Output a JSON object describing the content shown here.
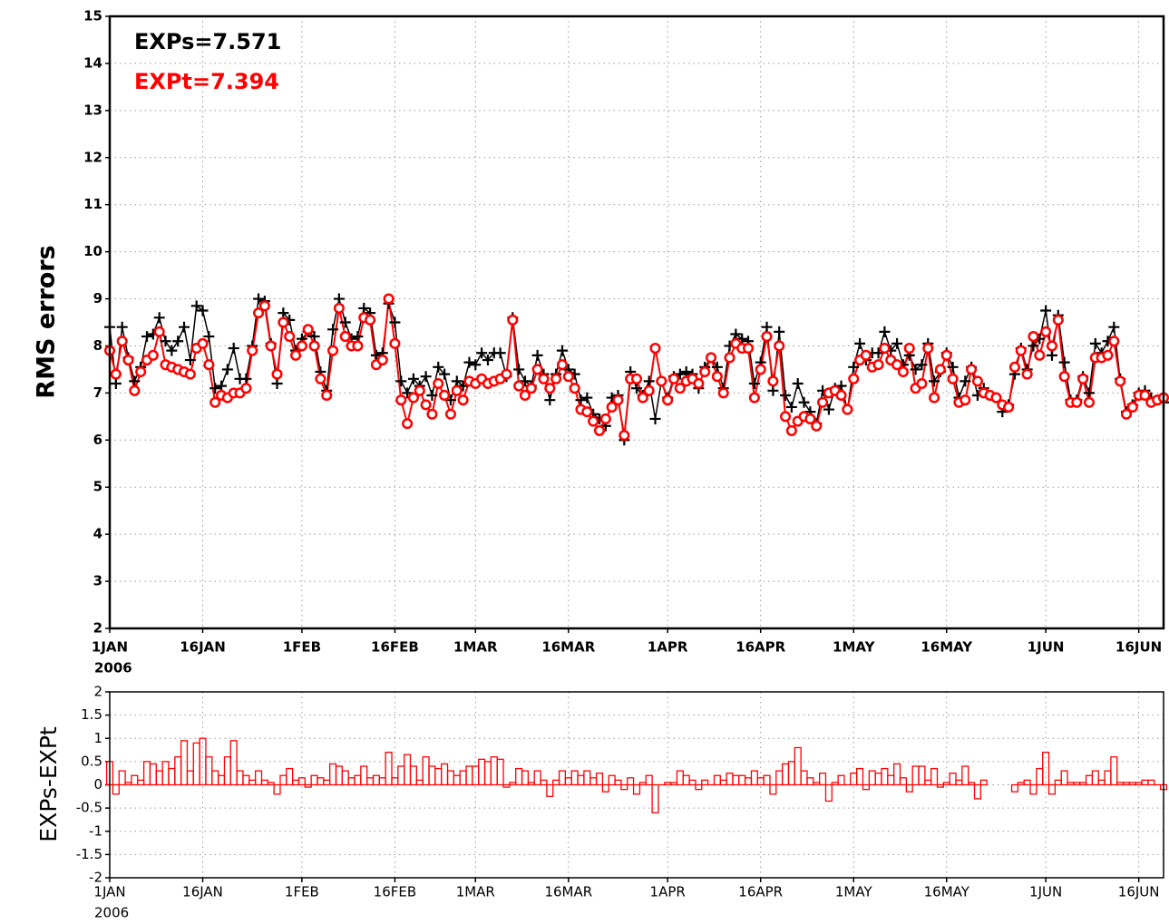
{
  "chart_data": [
    {
      "type": "line",
      "y_label": "RMS errors",
      "x_year_label": "2006",
      "grid": true,
      "x": [
        "2006-01-01",
        "2006-01-02",
        "2006-01-03",
        "2006-01-04",
        "2006-01-05",
        "2006-01-06",
        "2006-01-07",
        "2006-01-08",
        "2006-01-09",
        "2006-01-10",
        "2006-01-11",
        "2006-01-12",
        "2006-01-13",
        "2006-01-14",
        "2006-01-15",
        "2006-01-16",
        "2006-01-17",
        "2006-01-18",
        "2006-01-19",
        "2006-01-20",
        "2006-01-21",
        "2006-01-22",
        "2006-01-23",
        "2006-01-24",
        "2006-01-25",
        "2006-01-26",
        "2006-01-27",
        "2006-01-28",
        "2006-01-29",
        "2006-01-30",
        "2006-01-31",
        "2006-02-01",
        "2006-02-02",
        "2006-02-03",
        "2006-02-04",
        "2006-02-05",
        "2006-02-06",
        "2006-02-07",
        "2006-02-08",
        "2006-02-09",
        "2006-02-10",
        "2006-02-11",
        "2006-02-12",
        "2006-02-13",
        "2006-02-14",
        "2006-02-15",
        "2006-02-16",
        "2006-02-17",
        "2006-02-18",
        "2006-02-19",
        "2006-02-20",
        "2006-02-21",
        "2006-02-22",
        "2006-02-23",
        "2006-02-24",
        "2006-02-25",
        "2006-02-26",
        "2006-02-27",
        "2006-02-28",
        "2006-03-01",
        "2006-03-02",
        "2006-03-03",
        "2006-03-04",
        "2006-03-05",
        "2006-03-06",
        "2006-03-07",
        "2006-03-08",
        "2006-03-09",
        "2006-03-10",
        "2006-03-11",
        "2006-03-12",
        "2006-03-13",
        "2006-03-14",
        "2006-03-15",
        "2006-03-16",
        "2006-03-17",
        "2006-03-18",
        "2006-03-19",
        "2006-03-20",
        "2006-03-21",
        "2006-03-22",
        "2006-03-23",
        "2006-03-24",
        "2006-03-25",
        "2006-03-26",
        "2006-03-27",
        "2006-03-28",
        "2006-03-29",
        "2006-03-30",
        "2006-03-31",
        "2006-04-01",
        "2006-04-02",
        "2006-04-03",
        "2006-04-04",
        "2006-04-05",
        "2006-04-06",
        "2006-04-07",
        "2006-04-08",
        "2006-04-09",
        "2006-04-10",
        "2006-04-11",
        "2006-04-12",
        "2006-04-13",
        "2006-04-14",
        "2006-04-15",
        "2006-04-16",
        "2006-04-17",
        "2006-04-18",
        "2006-04-19",
        "2006-04-20",
        "2006-04-21",
        "2006-04-22",
        "2006-04-23",
        "2006-04-24",
        "2006-04-25",
        "2006-04-26",
        "2006-04-27",
        "2006-04-28",
        "2006-04-29",
        "2006-04-30",
        "2006-05-01",
        "2006-05-02",
        "2006-05-03",
        "2006-05-04",
        "2006-05-05",
        "2006-05-06",
        "2006-05-07",
        "2006-05-08",
        "2006-05-09",
        "2006-05-10",
        "2006-05-11",
        "2006-05-12",
        "2006-05-13",
        "2006-05-14",
        "2006-05-15",
        "2006-05-16",
        "2006-05-17",
        "2006-05-18",
        "2006-05-19",
        "2006-05-20",
        "2006-05-21",
        "2006-05-22",
        "2006-05-23",
        "2006-05-24",
        "2006-05-25",
        "2006-05-26",
        "2006-05-27",
        "2006-05-28",
        "2006-05-29",
        "2006-05-30",
        "2006-05-31",
        "2006-06-01",
        "2006-06-02",
        "2006-06-03",
        "2006-06-04",
        "2006-06-05",
        "2006-06-06",
        "2006-06-07",
        "2006-06-08",
        "2006-06-09",
        "2006-06-10",
        "2006-06-11",
        "2006-06-12",
        "2006-06-13",
        "2006-06-14",
        "2006-06-15",
        "2006-06-16",
        "2006-06-17",
        "2006-06-18",
        "2006-06-19",
        "2006-06-20"
      ],
      "series": [
        {
          "name": "EXPs=7.571",
          "color": "#000000",
          "marker": "plus",
          "values": [
            8.4,
            7.2,
            8.4,
            7.75,
            7.25,
            7.55,
            8.2,
            8.25,
            8.6,
            8.1,
            7.9,
            8.1,
            8.4,
            7.7,
            8.85,
            8.75,
            8.2,
            7.1,
            7.15,
            7.5,
            7.95,
            7.3,
            7.3,
            8.0,
            9.0,
            8.95,
            8.05,
            7.2,
            8.7,
            8.55,
            7.9,
            8.15,
            8.3,
            8.2,
            7.45,
            7.05,
            8.35,
            9.0,
            8.5,
            8.15,
            8.2,
            8.8,
            8.7,
            7.8,
            7.85,
            8.9,
            8.5,
            7.25,
            7.0,
            7.3,
            7.15,
            7.35,
            6.95,
            7.55,
            7.4,
            6.85,
            7.25,
            7.15,
            7.65,
            7.6,
            7.85,
            7.7,
            7.85,
            7.85,
            7.35,
            8.6,
            7.5,
            7.25,
            7.15,
            7.8,
            7.4,
            6.85,
            7.4,
            7.9,
            7.5,
            7.4,
            6.85,
            6.9,
            6.55,
            6.45,
            6.3,
            6.9,
            6.95,
            6.0,
            7.45,
            7.1,
            6.95,
            7.25,
            6.45,
            7.25,
            6.9,
            7.35,
            7.4,
            7.45,
            7.4,
            7.1,
            7.55,
            7.75,
            7.55,
            7.1,
            8.0,
            8.25,
            8.15,
            8.1,
            7.2,
            7.65,
            8.4,
            7.05,
            8.3,
            6.95,
            6.7,
            7.2,
            6.8,
            6.6,
            6.35,
            7.05,
            6.65,
            7.1,
            7.15,
            6.65,
            7.55,
            8.05,
            7.7,
            7.85,
            7.85,
            8.3,
            7.9,
            8.05,
            7.6,
            7.8,
            7.5,
            7.6,
            8.05,
            7.25,
            7.45,
            7.85,
            7.55,
            6.9,
            7.25,
            7.55,
            6.95,
            7.1,
            6.95,
            6.9,
            6.6,
            6.75,
            7.4,
            7.95,
            7.5,
            8.0,
            8.15,
            8.75,
            7.8,
            8.65,
            7.65,
            6.85,
            6.85,
            7.35,
            7.0,
            8.05,
            7.85,
            8.1,
            8.4,
            7.3,
            6.6,
            6.75,
            7.0,
            7.05,
            6.9,
            6.85,
            6.8
          ]
        },
        {
          "name": "EXPt=7.394",
          "color": "#ff0000",
          "marker": "circle",
          "values": [
            7.9,
            7.4,
            8.1,
            7.7,
            7.05,
            7.45,
            7.7,
            7.8,
            8.3,
            7.6,
            7.55,
            7.5,
            7.45,
            7.4,
            7.95,
            8.05,
            7.6,
            6.8,
            6.95,
            6.9,
            7.0,
            7.0,
            7.1,
            7.9,
            8.7,
            8.85,
            8.0,
            7.4,
            8.5,
            8.2,
            7.8,
            8.0,
            8.35,
            8.0,
            7.3,
            6.95,
            7.9,
            8.8,
            8.2,
            8.0,
            8.0,
            8.6,
            8.55,
            7.6,
            7.7,
            9.0,
            8.05,
            6.85,
            6.35,
            6.9,
            7.05,
            6.75,
            6.55,
            7.2,
            6.95,
            6.55,
            7.05,
            6.85,
            7.25,
            7.2,
            7.3,
            7.2,
            7.25,
            7.3,
            7.4,
            8.55,
            7.15,
            6.95,
            7.1,
            7.5,
            7.3,
            7.1,
            7.3,
            7.6,
            7.35,
            7.1,
            6.65,
            6.6,
            6.4,
            6.2,
            6.45,
            6.7,
            6.85,
            6.1,
            7.3,
            7.3,
            6.9,
            7.05,
            7.95,
            7.25,
            6.85,
            7.3,
            7.1,
            7.25,
            7.3,
            7.2,
            7.45,
            7.75,
            7.35,
            7.0,
            7.75,
            8.05,
            7.95,
            7.95,
            6.9,
            7.5,
            8.2,
            7.25,
            8.0,
            6.5,
            6.2,
            6.4,
            6.5,
            6.45,
            6.3,
            6.8,
            7.0,
            7.05,
            6.95,
            6.65,
            7.3,
            7.7,
            7.8,
            7.55,
            7.6,
            7.95,
            7.7,
            7.6,
            7.45,
            7.95,
            7.1,
            7.2,
            7.95,
            6.9,
            7.5,
            7.8,
            7.3,
            6.8,
            6.85,
            7.5,
            7.25,
            7.0,
            6.95,
            6.9,
            6.75,
            6.7,
            7.55,
            7.9,
            7.4,
            8.2,
            7.8,
            8.3,
            8.0,
            8.55,
            7.35,
            6.8,
            6.8,
            7.3,
            6.8,
            7.75,
            7.75,
            7.8,
            8.1,
            7.25,
            6.55,
            6.7,
            6.95,
            6.95,
            6.8,
            6.85,
            6.9
          ]
        }
      ],
      "xlim": [
        "2006-01-01",
        "2006-06-20"
      ],
      "xticks": [
        {
          "value": "2006-01-01",
          "label": "1JAN"
        },
        {
          "value": "2006-01-16",
          "label": "16JAN"
        },
        {
          "value": "2006-02-01",
          "label": "1FEB"
        },
        {
          "value": "2006-02-16",
          "label": "16FEB"
        },
        {
          "value": "2006-03-01",
          "label": "1MAR"
        },
        {
          "value": "2006-03-16",
          "label": "16MAR"
        },
        {
          "value": "2006-04-01",
          "label": "1APR"
        },
        {
          "value": "2006-04-16",
          "label": "16APR"
        },
        {
          "value": "2006-05-01",
          "label": "1MAY"
        },
        {
          "value": "2006-05-16",
          "label": "16MAY"
        },
        {
          "value": "2006-06-01",
          "label": "1JUN"
        },
        {
          "value": "2006-06-16",
          "label": "16JUN"
        }
      ],
      "ylim": [
        2,
        15
      ],
      "yticks": [
        2,
        3,
        4,
        5,
        6,
        7,
        8,
        9,
        10,
        11,
        12,
        13,
        14,
        15
      ]
    },
    {
      "type": "bar",
      "y_label": "EXPs-EXPt",
      "x_year_label": "2006",
      "grid": true,
      "x": [
        "2006-01-01",
        "2006-01-02",
        "2006-01-03",
        "2006-01-04",
        "2006-01-05",
        "2006-01-06",
        "2006-01-07",
        "2006-01-08",
        "2006-01-09",
        "2006-01-10",
        "2006-01-11",
        "2006-01-12",
        "2006-01-13",
        "2006-01-14",
        "2006-01-15",
        "2006-01-16",
        "2006-01-17",
        "2006-01-18",
        "2006-01-19",
        "2006-01-20",
        "2006-01-21",
        "2006-01-22",
        "2006-01-23",
        "2006-01-24",
        "2006-01-25",
        "2006-01-26",
        "2006-01-27",
        "2006-01-28",
        "2006-01-29",
        "2006-01-30",
        "2006-01-31",
        "2006-02-01",
        "2006-02-02",
        "2006-02-03",
        "2006-02-04",
        "2006-02-05",
        "2006-02-06",
        "2006-02-07",
        "2006-02-08",
        "2006-02-09",
        "2006-02-10",
        "2006-02-11",
        "2006-02-12",
        "2006-02-13",
        "2006-02-14",
        "2006-02-15",
        "2006-02-16",
        "2006-02-17",
        "2006-02-18",
        "2006-02-19",
        "2006-02-20",
        "2006-02-21",
        "2006-02-22",
        "2006-02-23",
        "2006-02-24",
        "2006-02-25",
        "2006-02-26",
        "2006-02-27",
        "2006-02-28",
        "2006-03-01",
        "2006-03-02",
        "2006-03-03",
        "2006-03-04",
        "2006-03-05",
        "2006-03-06",
        "2006-03-07",
        "2006-03-08",
        "2006-03-09",
        "2006-03-10",
        "2006-03-11",
        "2006-03-12",
        "2006-03-13",
        "2006-03-14",
        "2006-03-15",
        "2006-03-16",
        "2006-03-17",
        "2006-03-18",
        "2006-03-19",
        "2006-03-20",
        "2006-03-21",
        "2006-03-22",
        "2006-03-23",
        "2006-03-24",
        "2006-03-25",
        "2006-03-26",
        "2006-03-27",
        "2006-03-28",
        "2006-03-29",
        "2006-03-30",
        "2006-03-31",
        "2006-04-01",
        "2006-04-02",
        "2006-04-03",
        "2006-04-04",
        "2006-04-05",
        "2006-04-06",
        "2006-04-07",
        "2006-04-08",
        "2006-04-09",
        "2006-04-10",
        "2006-04-11",
        "2006-04-12",
        "2006-04-13",
        "2006-04-14",
        "2006-04-15",
        "2006-04-16",
        "2006-04-17",
        "2006-04-18",
        "2006-04-19",
        "2006-04-20",
        "2006-04-21",
        "2006-04-22",
        "2006-04-23",
        "2006-04-24",
        "2006-04-25",
        "2006-04-26",
        "2006-04-27",
        "2006-04-28",
        "2006-04-29",
        "2006-04-30",
        "2006-05-01",
        "2006-05-02",
        "2006-05-03",
        "2006-05-04",
        "2006-05-05",
        "2006-05-06",
        "2006-05-07",
        "2006-05-08",
        "2006-05-09",
        "2006-05-10",
        "2006-05-11",
        "2006-05-12",
        "2006-05-13",
        "2006-05-14",
        "2006-05-15",
        "2006-05-16",
        "2006-05-17",
        "2006-05-18",
        "2006-05-19",
        "2006-05-20",
        "2006-05-21",
        "2006-05-22",
        "2006-05-23",
        "2006-05-24",
        "2006-05-25",
        "2006-05-26",
        "2006-05-27",
        "2006-05-28",
        "2006-05-29",
        "2006-05-30",
        "2006-05-31",
        "2006-06-01",
        "2006-06-02",
        "2006-06-03",
        "2006-06-04",
        "2006-06-05",
        "2006-06-06",
        "2006-06-07",
        "2006-06-08",
        "2006-06-09",
        "2006-06-10",
        "2006-06-11",
        "2006-06-12",
        "2006-06-13",
        "2006-06-14",
        "2006-06-15",
        "2006-06-16",
        "2006-06-17",
        "2006-06-18",
        "2006-06-19",
        "2006-06-20"
      ],
      "color": "#ff0000",
      "values": [
        0.5,
        -0.2,
        0.3,
        0.05,
        0.2,
        0.1,
        0.5,
        0.45,
        0.3,
        0.5,
        0.35,
        0.6,
        0.95,
        0.3,
        0.9,
        1.0,
        0.6,
        0.3,
        0.2,
        0.6,
        0.95,
        0.3,
        0.2,
        0.1,
        0.3,
        0.1,
        0.05,
        -0.2,
        0.2,
        0.35,
        0.1,
        0.15,
        -0.05,
        0.2,
        0.15,
        0.1,
        0.45,
        0.4,
        0.3,
        0.15,
        0.2,
        0.4,
        0.15,
        0.2,
        0.15,
        0.7,
        0.15,
        0.4,
        0.65,
        0.4,
        0.1,
        0.6,
        0.4,
        0.35,
        0.45,
        0.3,
        0.2,
        0.3,
        0.4,
        0.4,
        0.55,
        0.5,
        0.6,
        0.55,
        -0.05,
        0.05,
        0.35,
        0.3,
        0.05,
        0.3,
        0.1,
        -0.25,
        0.1,
        0.3,
        0.15,
        0.3,
        0.2,
        0.3,
        0.15,
        0.25,
        -0.15,
        0.2,
        0.1,
        -0.1,
        0.15,
        -0.2,
        0.05,
        0.2,
        -0.6,
        0.0,
        0.05,
        0.05,
        0.3,
        0.2,
        0.1,
        -0.1,
        0.1,
        0.0,
        0.2,
        0.1,
        0.25,
        0.2,
        0.2,
        0.15,
        0.3,
        0.15,
        0.2,
        -0.2,
        0.3,
        0.45,
        0.5,
        0.8,
        0.3,
        0.15,
        0.05,
        0.25,
        -0.35,
        0.05,
        0.2,
        0.0,
        0.25,
        0.35,
        -0.1,
        0.3,
        0.25,
        0.35,
        0.2,
        0.45,
        0.15,
        -0.15,
        0.4,
        0.4,
        0.1,
        0.35,
        -0.05,
        0.05,
        0.25,
        0.1,
        0.4,
        0.05,
        -0.3,
        0.1,
        null,
        null,
        null,
        null,
        -0.15,
        0.05,
        0.1,
        -0.2,
        0.35,
        0.7,
        -0.2,
        0.1,
        0.3,
        0.05,
        0.05,
        0.05,
        0.2,
        0.3,
        0.1,
        0.3,
        0.6,
        0.05,
        0.05,
        0.05,
        0.05,
        0.1,
        0.1,
        0.0,
        -0.1
      ],
      "xlim": [
        "2006-01-01",
        "2006-06-20"
      ],
      "xticks": [
        {
          "value": "2006-01-01",
          "label": "1JAN"
        },
        {
          "value": "2006-01-16",
          "label": "16JAN"
        },
        {
          "value": "2006-02-01",
          "label": "1FEB"
        },
        {
          "value": "2006-02-16",
          "label": "16FEB"
        },
        {
          "value": "2006-03-01",
          "label": "1MAR"
        },
        {
          "value": "2006-03-16",
          "label": "16MAR"
        },
        {
          "value": "2006-04-01",
          "label": "1APR"
        },
        {
          "value": "2006-04-16",
          "label": "16APR"
        },
        {
          "value": "2006-05-01",
          "label": "1MAY"
        },
        {
          "value": "2006-05-16",
          "label": "16MAY"
        },
        {
          "value": "2006-06-01",
          "label": "1JUN"
        },
        {
          "value": "2006-06-16",
          "label": "16JUN"
        }
      ],
      "ylim": [
        -2,
        2
      ],
      "yticks": [
        -2,
        -1.5,
        -1,
        -0.5,
        0,
        0.5,
        1,
        1.5,
        2
      ]
    }
  ]
}
